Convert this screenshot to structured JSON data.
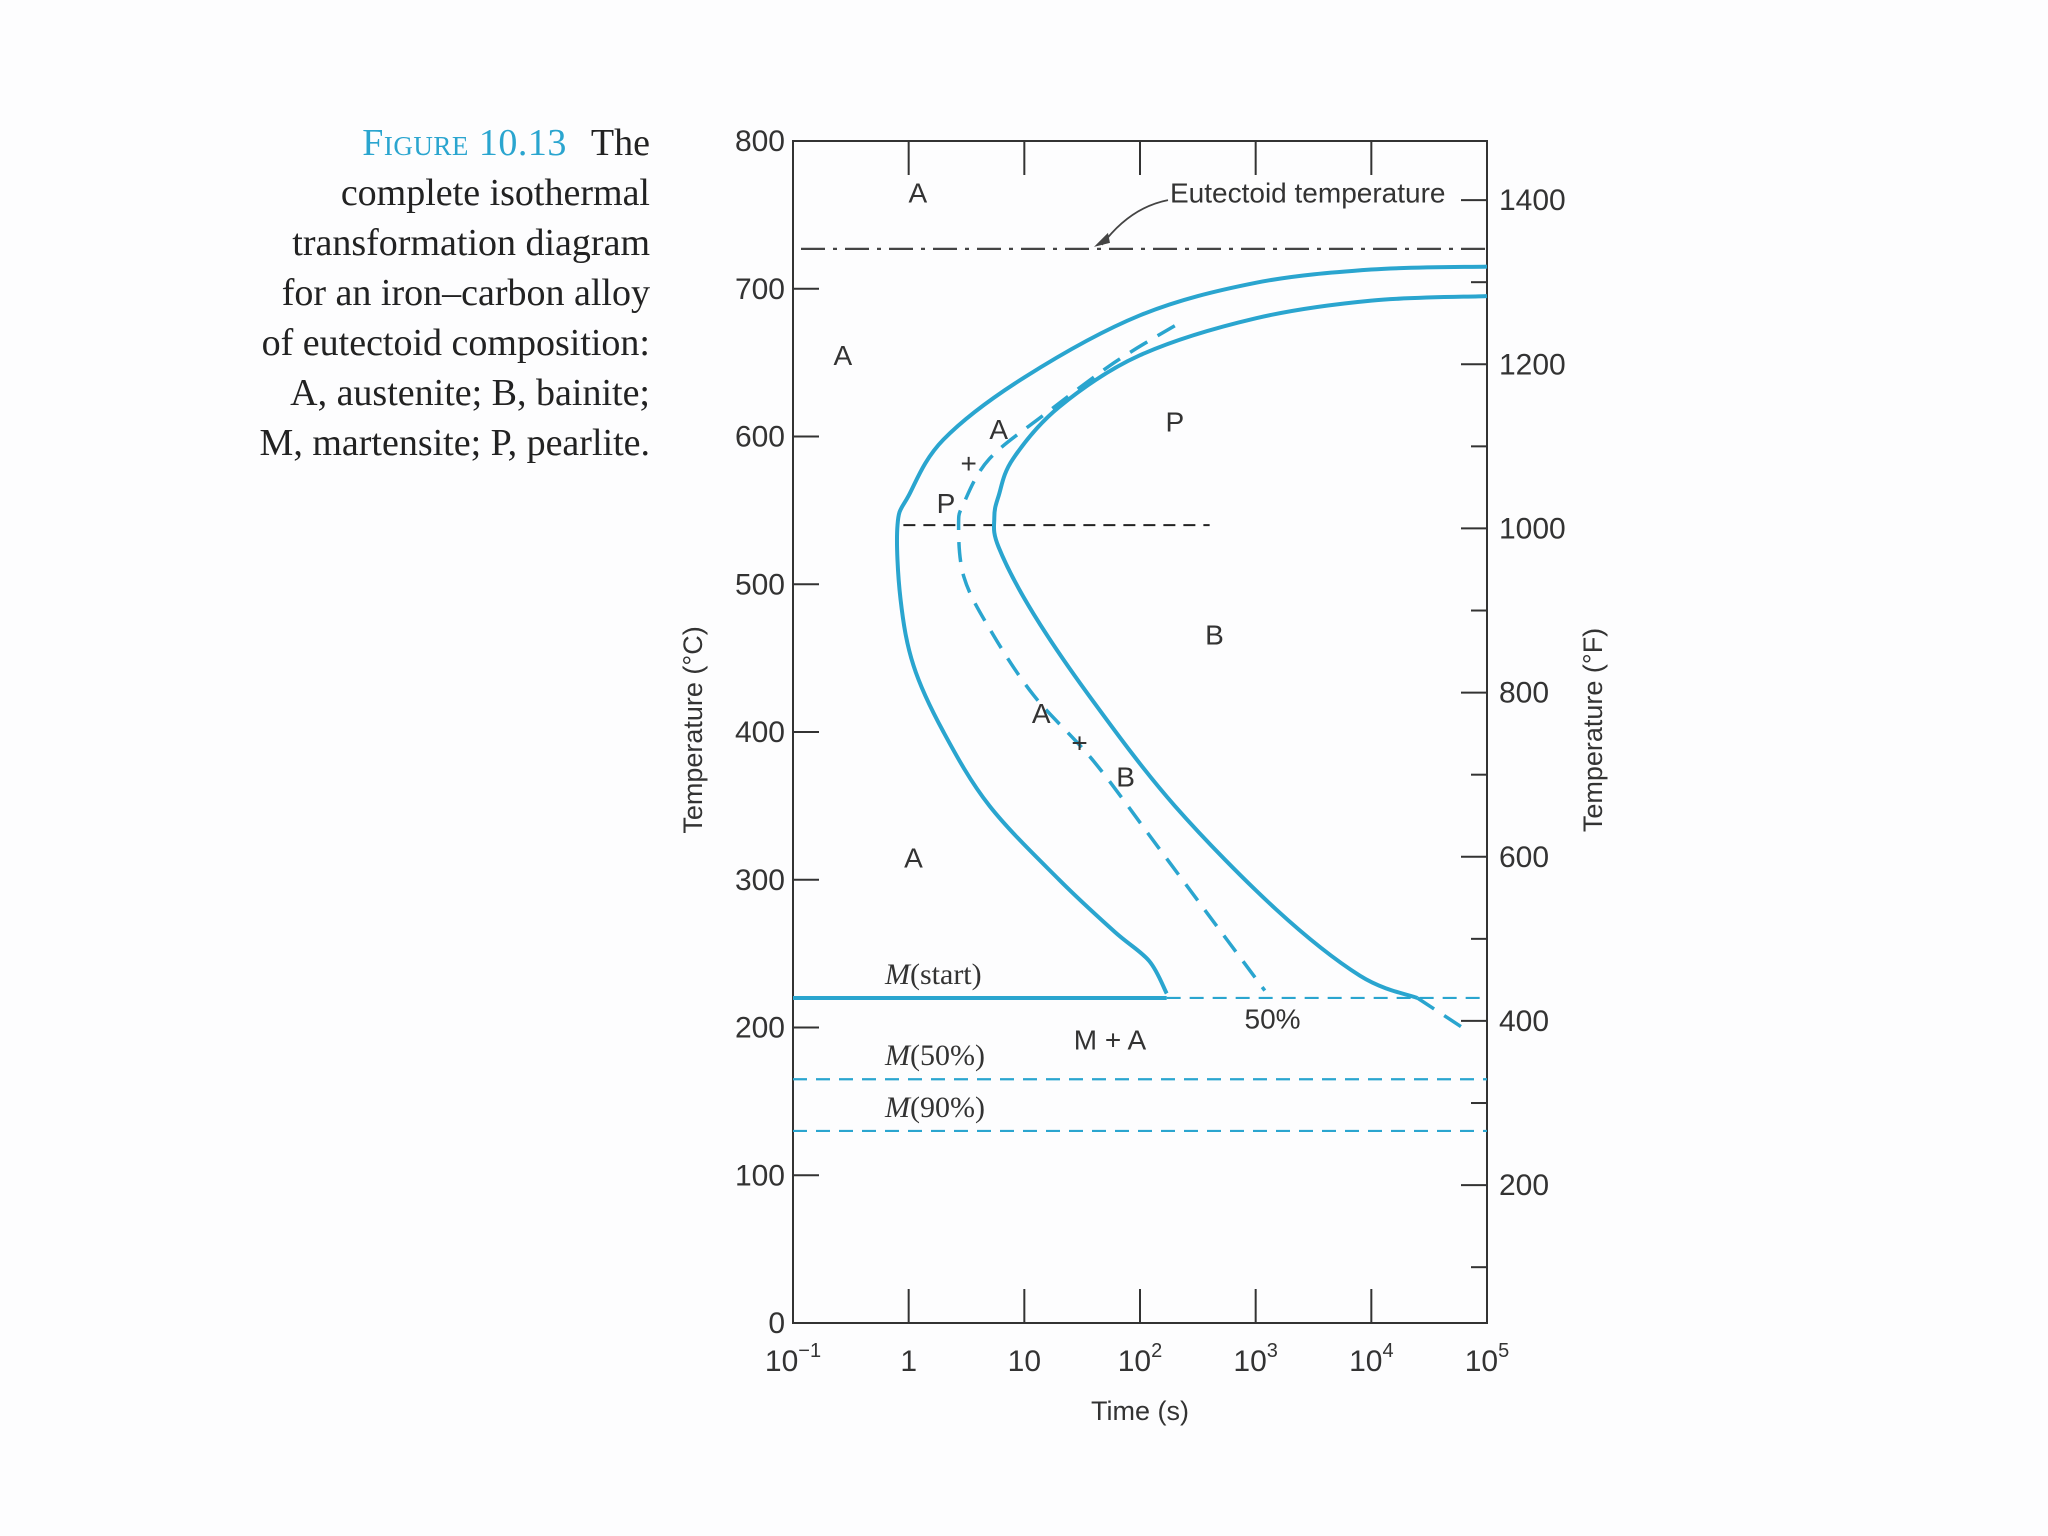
{
  "caption": {
    "figure": "Figure 10.13",
    "text": "The complete isothermal transformation diagram for an iron–carbon alloy of eutectoid composition: A, austenite; B, bainite; M, martensite; P, pearlite."
  },
  "chart_data": {
    "type": "line",
    "title": "",
    "xlabel": "Time (s)",
    "ylabel": "Temperature (°C)",
    "y2label": "Temperature (°F)",
    "x_scale": "log",
    "xlim": [
      0.1,
      100000
    ],
    "ylim": [
      0,
      800
    ],
    "y2lim": [
      32,
      1472
    ],
    "x_ticks": [
      {
        "value": 0.1,
        "base": "10",
        "exp": "−1"
      },
      {
        "value": 1,
        "base": "1",
        "exp": ""
      },
      {
        "value": 10,
        "base": "10",
        "exp": ""
      },
      {
        "value": 100,
        "base": "10",
        "exp": "2"
      },
      {
        "value": 1000,
        "base": "10",
        "exp": "3"
      },
      {
        "value": 10000,
        "base": "10",
        "exp": "4"
      },
      {
        "value": 100000,
        "base": "10",
        "exp": "5"
      }
    ],
    "y_ticks": [
      0,
      100,
      200,
      300,
      400,
      500,
      600,
      700,
      800
    ],
    "y2_ticks": [
      200,
      400,
      600,
      800,
      1000,
      1200,
      1400
    ],
    "colors": {
      "curve": "#2aa5cf",
      "eutectoid": "#444444",
      "frame": "#333333"
    },
    "eutectoid": {
      "temperature": 727,
      "label": "Eutectoid temperature"
    },
    "reference_line": {
      "temperature": 540,
      "x_range": [
        0.9,
        400
      ]
    },
    "series": [
      {
        "style": "solid",
        "points": [
          [
            100000,
            715
          ],
          [
            10000,
            713
          ],
          [
            1000,
            704
          ],
          [
            100,
            682
          ],
          [
            10,
            640
          ],
          [
            2,
            598
          ],
          [
            1,
            560
          ],
          [
            0.8,
            540
          ],
          [
            0.85,
            490
          ],
          [
            1.1,
            445
          ],
          [
            2,
            400
          ],
          [
            5,
            350
          ],
          [
            20,
            300
          ],
          [
            60,
            265
          ],
          [
            120,
            245
          ],
          [
            170,
            223
          ]
        ]
      },
      {
        "style": "dashed",
        "points": [
          [
            200,
            675
          ],
          [
            60,
            650
          ],
          [
            15,
            615
          ],
          [
            5,
            585
          ],
          [
            3,
            555
          ],
          [
            2.7,
            540
          ],
          [
            3,
            505
          ],
          [
            5,
            470
          ],
          [
            12,
            425
          ],
          [
            40,
            380
          ],
          [
            150,
            320
          ],
          [
            500,
            265
          ],
          [
            1200,
            225
          ]
        ]
      },
      {
        "style": "solid",
        "points": [
          [
            100000,
            695
          ],
          [
            10000,
            692
          ],
          [
            1000,
            680
          ],
          [
            100,
            655
          ],
          [
            20,
            620
          ],
          [
            8,
            585
          ],
          [
            6,
            560
          ],
          [
            5.5,
            545
          ],
          [
            6,
            525
          ],
          [
            12,
            480
          ],
          [
            40,
            420
          ],
          [
            200,
            350
          ],
          [
            1500,
            280
          ],
          [
            8000,
            235
          ],
          [
            25000,
            220
          ]
        ]
      },
      {
        "style": "dashed",
        "points": [
          [
            25000,
            220
          ],
          [
            70000,
            197
          ]
        ]
      }
    ],
    "martensite_lines": [
      {
        "label_italic": "M",
        "label_rest": "(start)",
        "temperature": 220,
        "style": "solid-then-dashed",
        "solid_until": 170
      },
      {
        "label_italic": "M",
        "label_rest": "(50%)",
        "temperature": 165,
        "style": "dashed"
      },
      {
        "label_italic": "M",
        "label_rest": "(90%)",
        "temperature": 130,
        "style": "dashed"
      }
    ],
    "annotations": [
      {
        "text": "A",
        "x": 1.2,
        "y": 765
      },
      {
        "text": "A",
        "x": 0.27,
        "y": 655
      },
      {
        "text": "A",
        "x": 6,
        "y": 605
      },
      {
        "text": "+",
        "x": 3.3,
        "y": 582
      },
      {
        "text": "P",
        "x": 2.1,
        "y": 555
      },
      {
        "text": "P",
        "x": 200,
        "y": 610
      },
      {
        "text": "B",
        "x": 440,
        "y": 466
      },
      {
        "text": "A",
        "x": 14,
        "y": 413
      },
      {
        "text": "+",
        "x": 30,
        "y": 393
      },
      {
        "text": "B",
        "x": 75,
        "y": 370
      },
      {
        "text": "A",
        "x": 1.1,
        "y": 315
      },
      {
        "text": "M + A",
        "x": 55,
        "y": 192
      },
      {
        "text": "50%",
        "x": 1400,
        "y": 206
      }
    ]
  }
}
